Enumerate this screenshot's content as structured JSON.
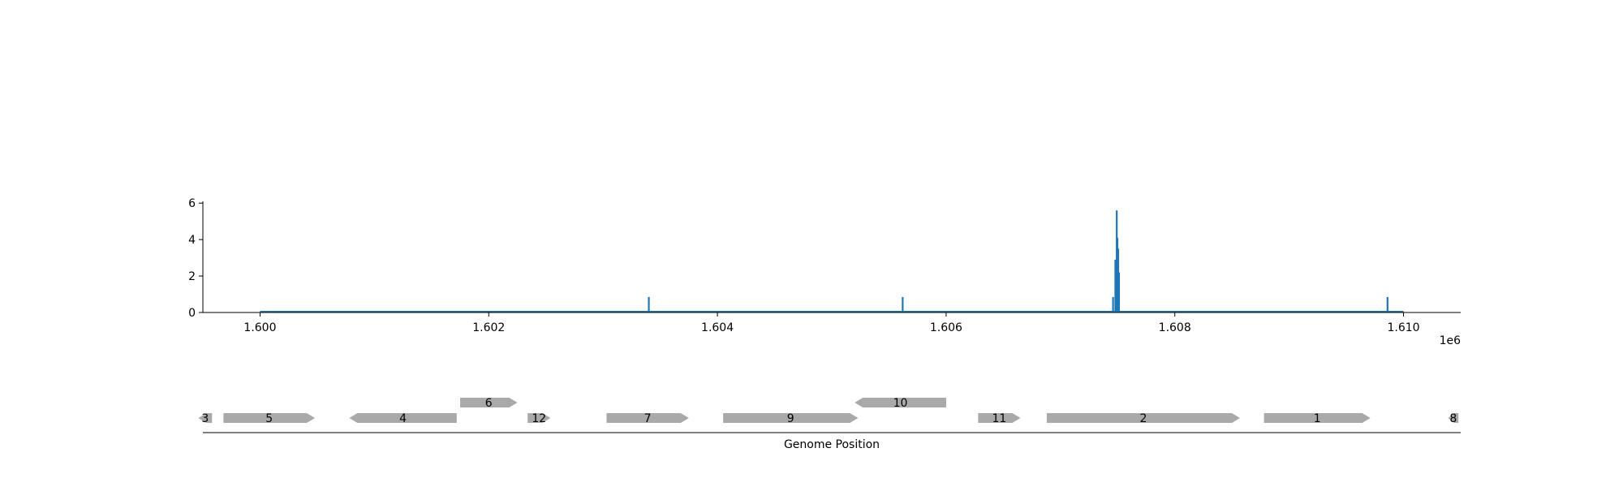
{
  "chart_data": [
    {
      "type": "line",
      "title": "",
      "xlabel": "",
      "ylabel": "",
      "x_offset_label": "1e6",
      "xlim": [
        1599500,
        1610500
      ],
      "ylim": [
        0,
        6.1
      ],
      "x_ticks": [
        1600000,
        1602000,
        1604000,
        1606000,
        1608000,
        1610000
      ],
      "x_tick_labels": [
        "1.600",
        "1.602",
        "1.604",
        "1.606",
        "1.608",
        "1.610"
      ],
      "y_ticks": [
        0,
        2,
        4,
        6
      ],
      "y_tick_labels": [
        "0",
        "2",
        "4",
        "6"
      ],
      "baseline_range": [
        1600000,
        1610000
      ],
      "series": [
        {
          "color": "#1f77b4",
          "spikes": [
            {
              "x": 1603400,
              "y": 0.85
            },
            {
              "x": 1605620,
              "y": 0.85
            },
            {
              "x": 1607460,
              "y": 0.85
            },
            {
              "x": 1607480,
              "y": 2.9
            },
            {
              "x": 1607492,
              "y": 5.6
            },
            {
              "x": 1607498,
              "y": 4.1
            },
            {
              "x": 1607505,
              "y": 3.5
            },
            {
              "x": 1607512,
              "y": 2.2
            },
            {
              "x": 1609860,
              "y": 0.85
            }
          ]
        }
      ],
      "grid": false
    },
    {
      "type": "gene-map",
      "xlabel": "Genome Position",
      "gene_color": "#a9a9a9",
      "genes": [
        {
          "label": "3",
          "start": 1599460,
          "end": 1599580,
          "strand": "-",
          "row": 0
        },
        {
          "label": "5",
          "start": 1599680,
          "end": 1600480,
          "strand": "+",
          "row": 0
        },
        {
          "label": "4",
          "start": 1600780,
          "end": 1601720,
          "strand": "-",
          "row": 0
        },
        {
          "label": "6",
          "start": 1601750,
          "end": 1602250,
          "strand": "+",
          "row": 1
        },
        {
          "label": "12",
          "start": 1602340,
          "end": 1602540,
          "strand": "+",
          "row": 0
        },
        {
          "label": "7",
          "start": 1603030,
          "end": 1603750,
          "strand": "+",
          "row": 0
        },
        {
          "label": "9",
          "start": 1604050,
          "end": 1605230,
          "strand": "+",
          "row": 0
        },
        {
          "label": "10",
          "start": 1605200,
          "end": 1606000,
          "strand": "-",
          "row": 1
        },
        {
          "label": "11",
          "start": 1606280,
          "end": 1606650,
          "strand": "+",
          "row": 0
        },
        {
          "label": "2",
          "start": 1606880,
          "end": 1608570,
          "strand": "+",
          "row": 0
        },
        {
          "label": "1",
          "start": 1608780,
          "end": 1609710,
          "strand": "+",
          "row": 0
        },
        {
          "label": "8",
          "start": 1610390,
          "end": 1610480,
          "strand": "-",
          "row": 0
        }
      ]
    }
  ]
}
